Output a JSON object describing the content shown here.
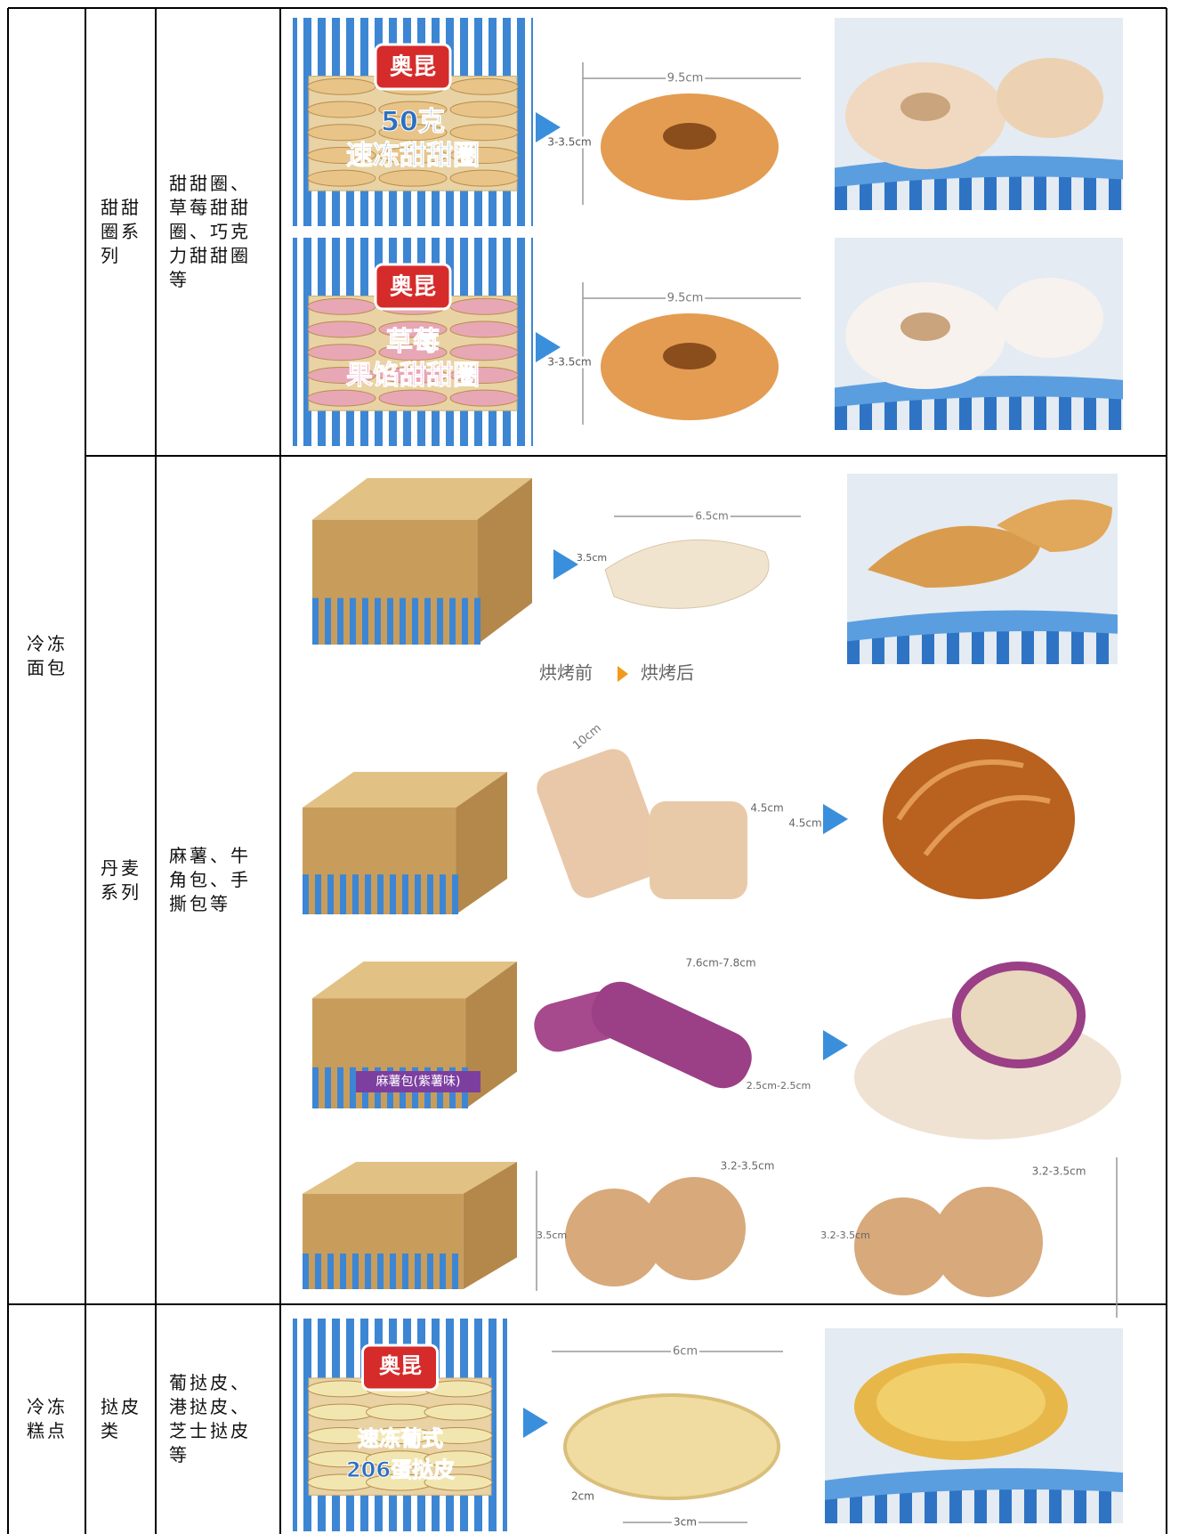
{
  "table": {
    "groups": [
      {
        "category": "冷冻面包",
        "items": [
          {
            "series": "甜甜圈系列",
            "products": "甜甜圈、草莓甜甜圈、巧克力甜甜圈等"
          },
          {
            "series": "丹麦系列",
            "products": "麻薯、牛角包、手撕包等"
          }
        ]
      },
      {
        "category": "冷冻糕点",
        "items": [
          {
            "series": "挞皮类",
            "products": "葡挞皮、港挞皮、芝士挞皮等"
          }
        ]
      }
    ]
  },
  "panels": [
    {
      "labels": [
        "奥昆",
        "50克",
        "速冻甜甜圈",
        "9.5cm",
        "3-3.5cm"
      ]
    },
    {
      "labels": [
        "奥昆",
        "草莓",
        "果馅甜甜圈",
        "9.5cm",
        "3-3.5cm"
      ]
    },
    {
      "labels": [
        "6.5cm",
        "3.5cm"
      ]
    },
    {
      "labels": [
        "烘烤前",
        "烘烤后"
      ]
    },
    {
      "labels": [
        "10cm",
        "4.5cm",
        "4.5cm"
      ]
    },
    {
      "labels": [
        "麻薯包(紫薯味)",
        "7.6cm-7.8cm",
        "2.5cm-2.5cm"
      ]
    },
    {
      "labels": [
        "3.2-3.5cm",
        "3.5cm",
        "3.2-3.5cm",
        "3.2-3.5cm"
      ]
    },
    {
      "labels": [
        "奥昆",
        "速冻葡式",
        "206蛋挞皮",
        "6cm",
        "2cm",
        "3cm"
      ]
    }
  ]
}
